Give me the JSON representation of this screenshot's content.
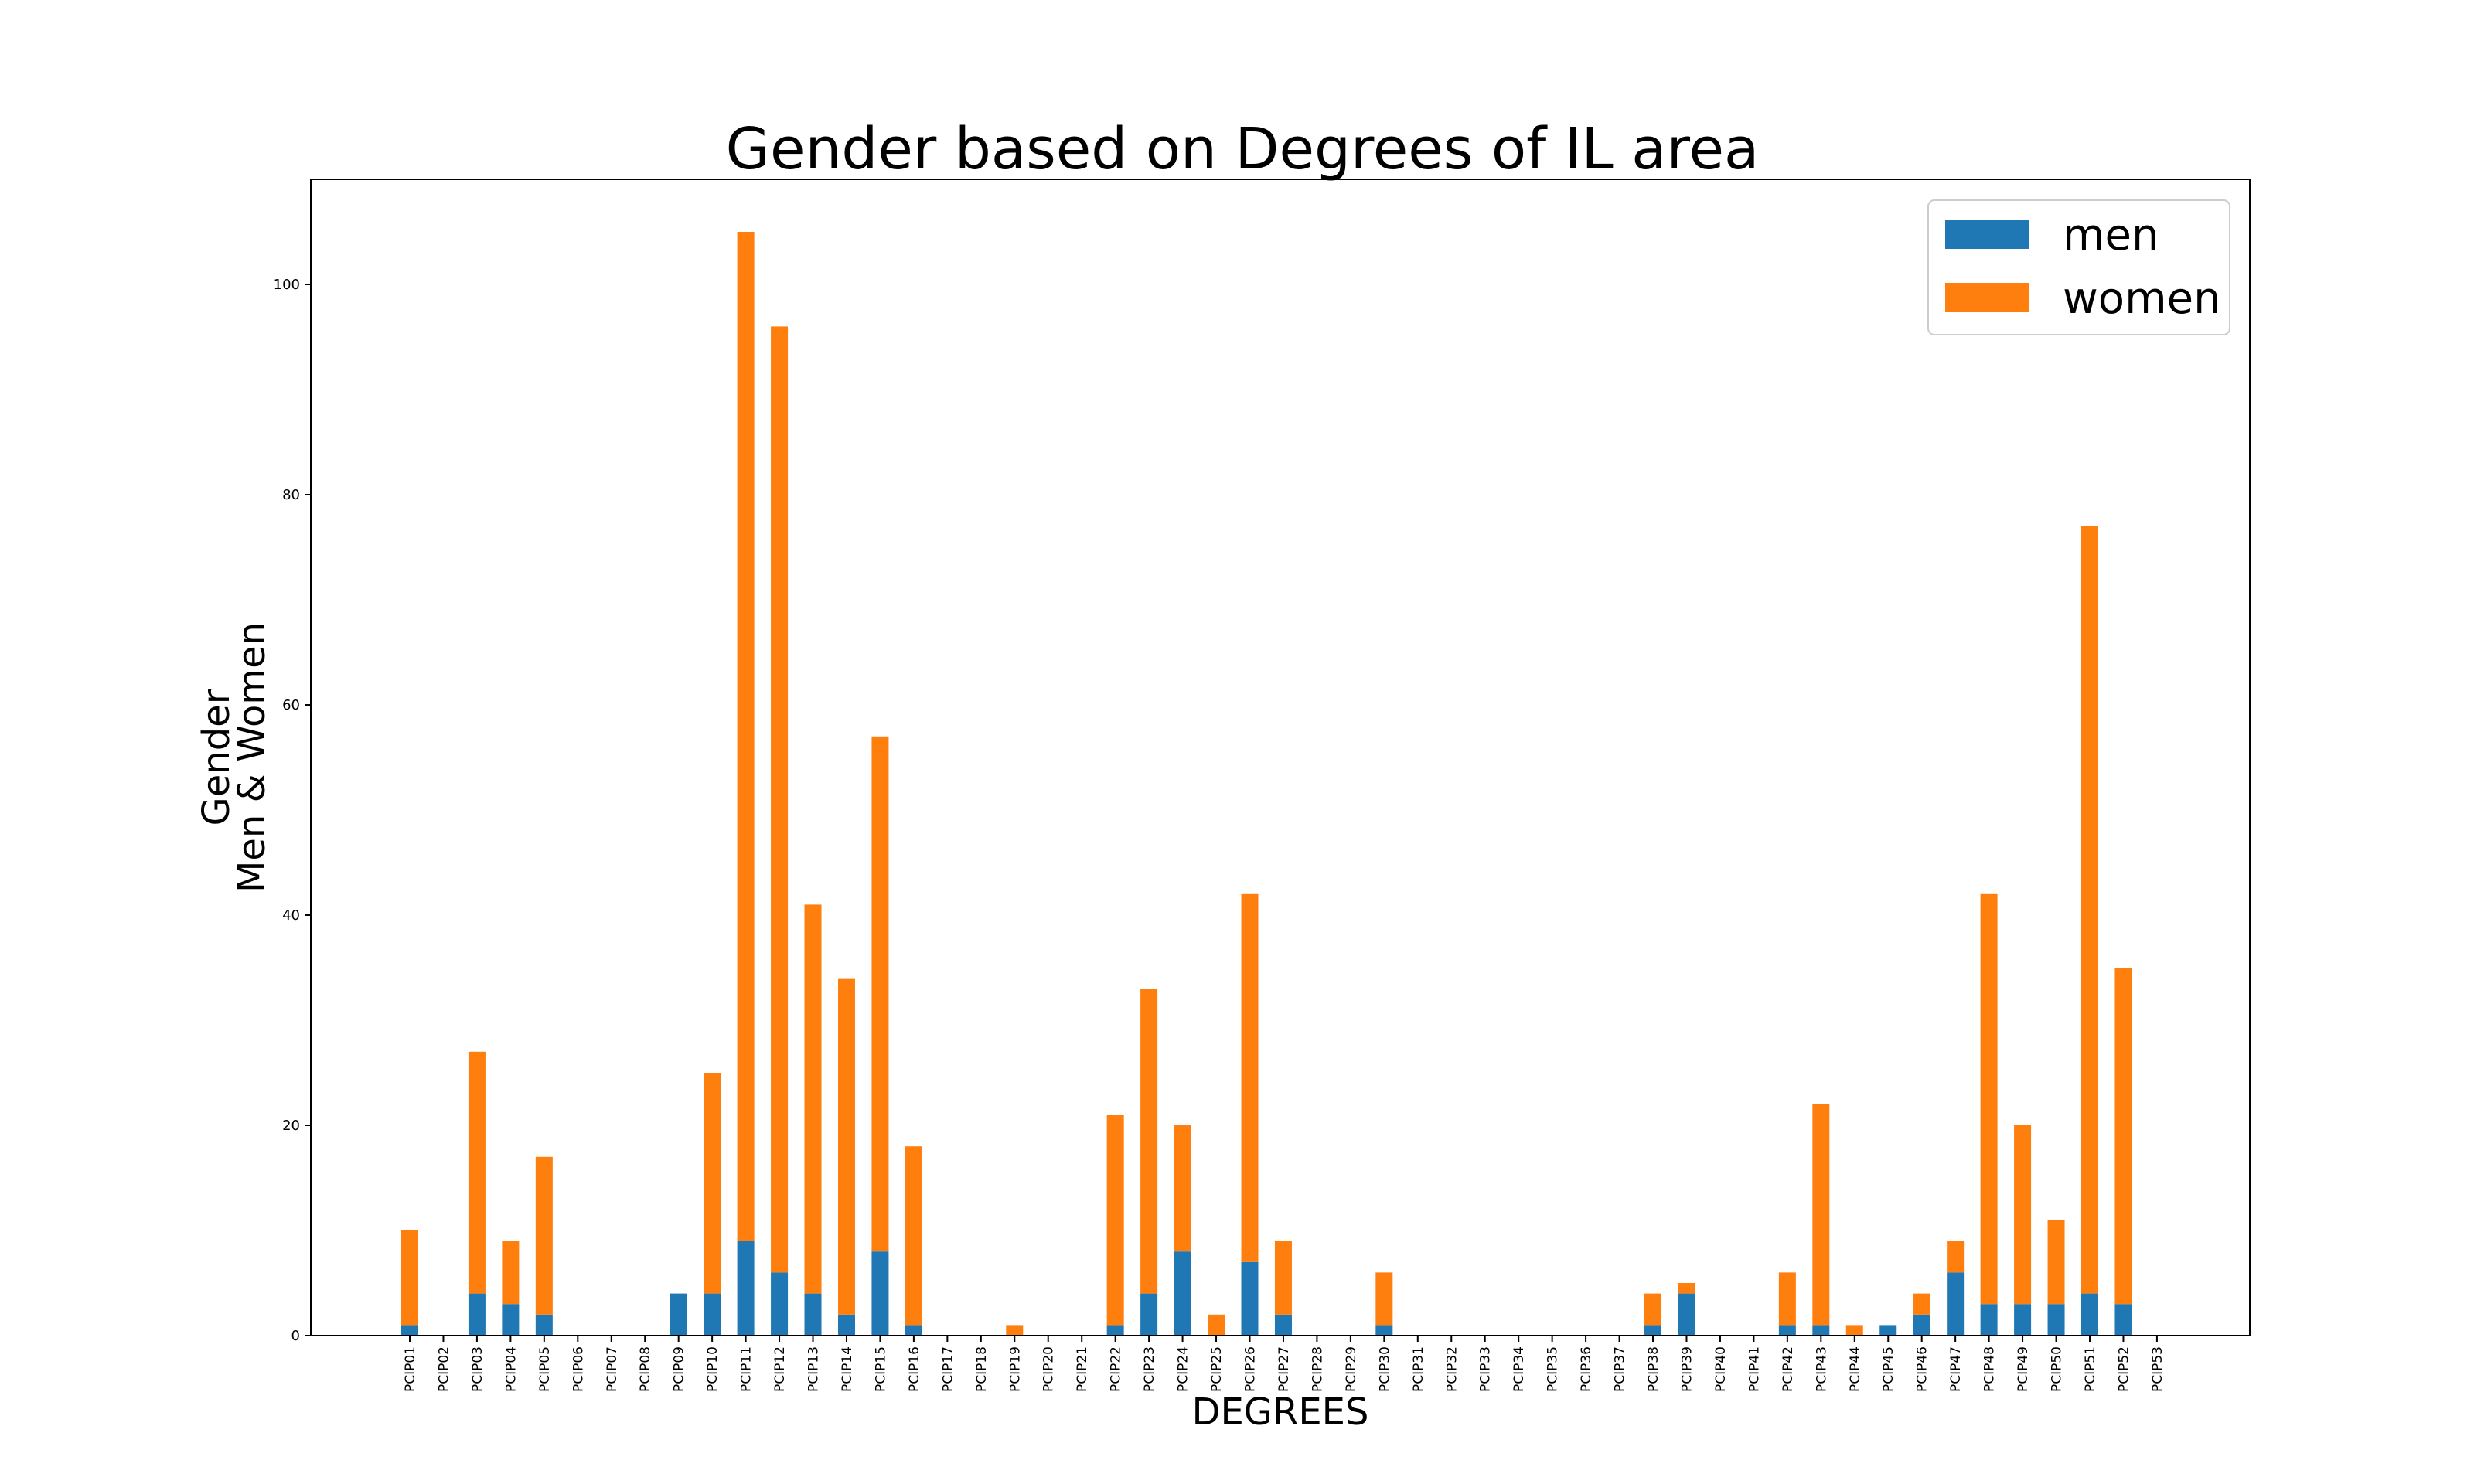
{
  "chart_data": {
    "type": "bar",
    "stacked": true,
    "title": "Gender based on Degrees of IL area",
    "xlabel": "DEGREES",
    "ylabel": [
      "Gender",
      "Men & Women"
    ],
    "ylim": [
      0,
      110
    ],
    "yticks": [
      0,
      20,
      40,
      60,
      80,
      100
    ],
    "legend_position": "top-right",
    "grid": false,
    "categories": [
      "PCIP01",
      "PCIP02",
      "PCIP03",
      "PCIP04",
      "PCIP05",
      "PCIP06",
      "PCIP07",
      "PCIP08",
      "PCIP09",
      "PCIP10",
      "PCIP11",
      "PCIP12",
      "PCIP13",
      "PCIP14",
      "PCIP15",
      "PCIP16",
      "PCIP17",
      "PCIP18",
      "PCIP19",
      "PCIP20",
      "PCIP21",
      "PCIP22",
      "PCIP23",
      "PCIP24",
      "PCIP25",
      "PCIP26",
      "PCIP27",
      "PCIP28",
      "PCIP29",
      "PCIP30",
      "PCIP31",
      "PCIP32",
      "PCIP33",
      "PCIP34",
      "PCIP35",
      "PCIP36",
      "PCIP37",
      "PCIP38",
      "PCIP39",
      "PCIP40",
      "PCIP41",
      "PCIP42",
      "PCIP43",
      "PCIP44",
      "PCIP45",
      "PCIP46",
      "PCIP47",
      "PCIP48",
      "PCIP49",
      "PCIP50",
      "PCIP51",
      "PCIP52",
      "PCIP53"
    ],
    "series": [
      {
        "name": "men",
        "color": "#1f77b4",
        "values": [
          1,
          0,
          4,
          3,
          2,
          0,
          0,
          0,
          4,
          4,
          9,
          6,
          4,
          2,
          8,
          1,
          0,
          0,
          0,
          0,
          0,
          1,
          4,
          8,
          0,
          7,
          2,
          0,
          0,
          1,
          0,
          0,
          0,
          0,
          0,
          0,
          0,
          1,
          4,
          0,
          0,
          1,
          1,
          0,
          1,
          2,
          6,
          3,
          3,
          3,
          4,
          3,
          0
        ]
      },
      {
        "name": "women",
        "color": "#ff7f0e",
        "values": [
          9,
          0,
          23,
          6,
          15,
          0,
          0,
          0,
          0,
          21,
          96,
          90,
          37,
          32,
          49,
          17,
          0,
          0,
          1,
          0,
          0,
          20,
          29,
          12,
          2,
          35,
          7,
          0,
          0,
          5,
          0,
          0,
          0,
          0,
          0,
          0,
          0,
          3,
          1,
          0,
          0,
          5,
          21,
          1,
          0,
          2,
          3,
          39,
          17,
          8,
          73,
          32,
          0
        ]
      }
    ]
  }
}
